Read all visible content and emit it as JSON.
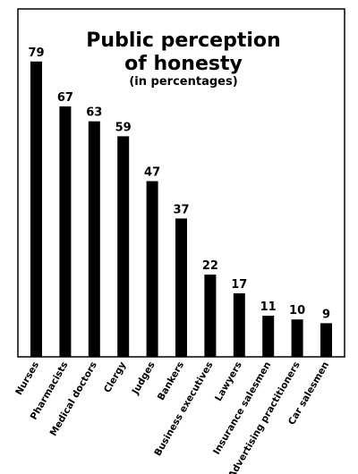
{
  "chart_data": {
    "type": "bar",
    "title": "Public perception",
    "title_line2": "of honesty",
    "subtitle": "(in percentages)",
    "categories": [
      "Nurses",
      "Pharmacists",
      "Medical doctors",
      "Clergy",
      "Judges",
      "Bankers",
      "Business executives",
      "Lawyers",
      "Insurance salesmen",
      "Advertising practitioners",
      "Car salesmen"
    ],
    "values": [
      79,
      67,
      63,
      59,
      47,
      37,
      22,
      17,
      11,
      10,
      9
    ],
    "ylim": [
      0,
      100
    ],
    "grid": false,
    "colors": {
      "bar": "#000000",
      "frame": "#000000",
      "background": "#ffffff"
    }
  }
}
